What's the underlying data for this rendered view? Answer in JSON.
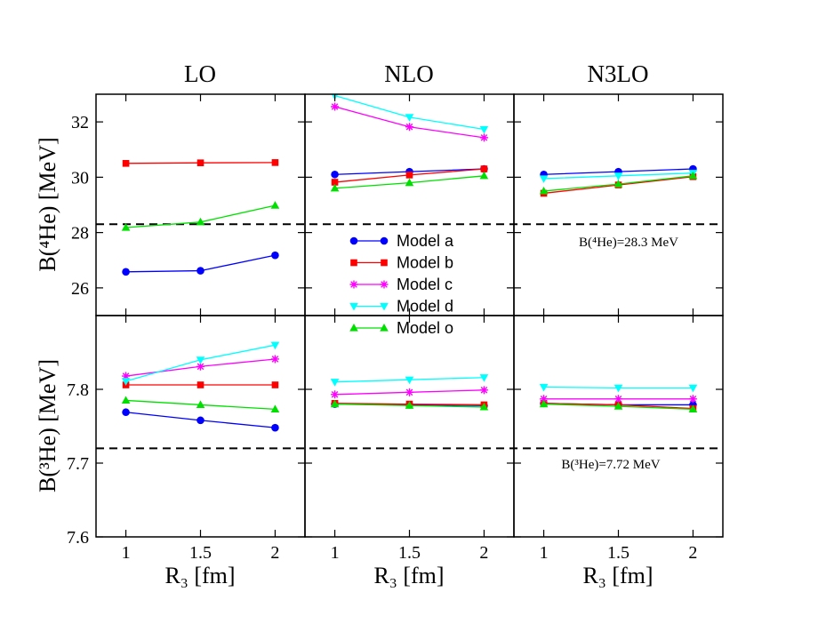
{
  "chart_data": {
    "type": "line",
    "columns": [
      "LO",
      "NLO",
      "N3LO"
    ],
    "x": [
      1,
      1.5,
      2
    ],
    "xlim": [
      0.8,
      2.2
    ],
    "xticks": [
      1,
      1.5,
      2
    ],
    "xtick_labels": [
      "1",
      "1.5",
      "2"
    ],
    "xlabel": "R₃ [fm]",
    "rows": [
      {
        "key": "he4",
        "ylabel": "B(⁴He) [MeV]",
        "ylim": [
          25,
          33
        ],
        "yticks": [
          26,
          28,
          30,
          32
        ],
        "ytick_labels": [
          "26",
          "28",
          "30",
          "32"
        ],
        "reference": 28.3,
        "annotation": "B(⁴He)=28.3 MeV",
        "panels": [
          {
            "column": "LO",
            "series": [
              {
                "name": "Model a",
                "values": [
                  26.58,
                  26.62,
                  27.18
                ]
              },
              {
                "name": "Model b",
                "values": [
                  30.5,
                  30.52,
                  30.53
                ]
              },
              {
                "name": "Model o",
                "values": [
                  28.18,
                  28.38,
                  28.98
                ]
              }
            ]
          },
          {
            "column": "NLO",
            "series": [
              {
                "name": "Model a",
                "values": [
                  30.1,
                  30.2,
                  30.3
                ]
              },
              {
                "name": "Model b",
                "values": [
                  29.82,
                  30.08,
                  30.3
                ]
              },
              {
                "name": "Model c",
                "values": [
                  32.55,
                  31.82,
                  31.43
                ]
              },
              {
                "name": "Model d",
                "values": [
                  32.95,
                  32.17,
                  31.73
                ]
              },
              {
                "name": "Model o",
                "values": [
                  29.6,
                  29.8,
                  30.05
                ]
              }
            ]
          },
          {
            "column": "N3LO",
            "series": [
              {
                "name": "Model a",
                "values": [
                  30.1,
                  30.2,
                  30.3
                ]
              },
              {
                "name": "Model b",
                "values": [
                  29.42,
                  29.72,
                  30.02
                ]
              },
              {
                "name": "Model d",
                "values": [
                  29.95,
                  30.05,
                  30.15
                ]
              },
              {
                "name": "Model o",
                "values": [
                  29.5,
                  29.75,
                  30.05
                ]
              }
            ]
          }
        ]
      },
      {
        "key": "he3",
        "ylabel": "B(³He) [MeV]",
        "ylim": [
          7.6,
          7.9
        ],
        "yticks": [
          7.6,
          7.7,
          7.8
        ],
        "ytick_labels": [
          "7.6",
          "7.7",
          "7.8"
        ],
        "reference": 7.72,
        "annotation": "B(³He)=7.72 MeV",
        "panels": [
          {
            "column": "LO",
            "series": [
              {
                "name": "Model a",
                "values": [
                  7.769,
                  7.758,
                  7.748
                ]
              },
              {
                "name": "Model b",
                "values": [
                  7.806,
                  7.806,
                  7.806
                ]
              },
              {
                "name": "Model c",
                "values": [
                  7.818,
                  7.831,
                  7.841
                ]
              },
              {
                "name": "Model d",
                "values": [
                  7.811,
                  7.84,
                  7.86
                ]
              },
              {
                "name": "Model o",
                "values": [
                  7.785,
                  7.779,
                  7.773
                ]
              }
            ]
          },
          {
            "column": "NLO",
            "series": [
              {
                "name": "Model a",
                "values": [
                  7.78,
                  7.779,
                  7.778
                ]
              },
              {
                "name": "Model b",
                "values": [
                  7.781,
                  7.78,
                  7.779
                ]
              },
              {
                "name": "Model c",
                "values": [
                  7.793,
                  7.796,
                  7.799
                ]
              },
              {
                "name": "Model d",
                "values": [
                  7.81,
                  7.813,
                  7.816
                ]
              },
              {
                "name": "Model o",
                "values": [
                  7.78,
                  7.778,
                  7.776
                ]
              }
            ]
          },
          {
            "column": "N3LO",
            "series": [
              {
                "name": "Model a",
                "values": [
                  7.781,
                  7.779,
                  7.779
                ]
              },
              {
                "name": "Model b",
                "values": [
                  7.781,
                  7.779,
                  7.774
                ]
              },
              {
                "name": "Model c",
                "values": [
                  7.787,
                  7.787,
                  7.787
                ]
              },
              {
                "name": "Model d",
                "values": [
                  7.803,
                  7.802,
                  7.802
                ]
              },
              {
                "name": "Model o",
                "values": [
                  7.78,
                  7.777,
                  7.773
                ]
              }
            ]
          }
        ]
      }
    ],
    "legend": {
      "placement": "top-middle panel, lower left",
      "entries": [
        "Model a",
        "Model b",
        "Model c",
        "Model d",
        "Model o"
      ]
    },
    "styles": {
      "Model a": {
        "color": "#0000ff",
        "marker": "circle"
      },
      "Model b": {
        "color": "#ff0000",
        "marker": "square"
      },
      "Model c": {
        "color": "#ff00ff",
        "marker": "star"
      },
      "Model d": {
        "color": "#00ffff",
        "marker": "triangle-down"
      },
      "Model o": {
        "color": "#00e000",
        "marker": "triangle-up"
      }
    }
  }
}
